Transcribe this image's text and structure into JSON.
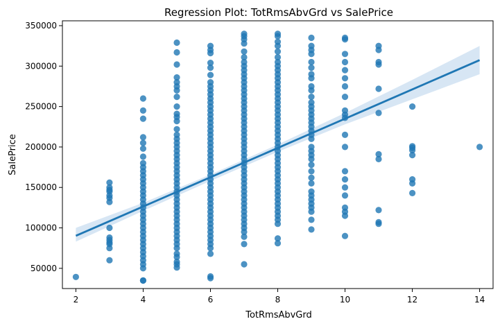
{
  "chart_data": {
    "type": "scatter",
    "title": "Regression Plot: TotRmsAbvGrd vs SalePrice",
    "xlabel": "TotRmsAbvGrd",
    "ylabel": "SalePrice",
    "xlim": [
      1.6,
      14.4
    ],
    "ylim": [
      25000,
      356000
    ],
    "xticks": [
      2,
      4,
      6,
      8,
      10,
      12,
      14
    ],
    "yticks": [
      50000,
      100000,
      150000,
      200000,
      250000,
      300000,
      350000
    ],
    "grid": false,
    "colors": {
      "points": "#1f77b4",
      "line": "#1f77b4",
      "band": "#c6dbef"
    },
    "regression": {
      "intercept": 54000,
      "slope": 18100,
      "x_range": [
        2,
        14
      ]
    },
    "confidence_band": {
      "x": [
        2,
        4,
        6,
        8,
        10,
        12,
        14
      ],
      "lower": [
        83000,
        121000,
        158000,
        194000,
        228000,
        259000,
        290000
      ],
      "upper": [
        100000,
        131000,
        166000,
        203000,
        242000,
        283000,
        325000
      ]
    },
    "series": [
      {
        "x": 2,
        "values": [
          39300
        ]
      },
      {
        "x": 3,
        "values": [
          156000,
          150000,
          147000,
          145000,
          140000,
          137000,
          132000,
          100000,
          88000,
          85000,
          82000,
          80000,
          75000,
          60000
        ]
      },
      {
        "x": 4,
        "values": [
          260000,
          245000,
          235000,
          212000,
          205000,
          198000,
          188000,
          180000,
          175000,
          170000,
          165000,
          160000,
          155000,
          150000,
          145000,
          140000,
          135000,
          130000,
          125000,
          120000,
          115000,
          110000,
          105000,
          100000,
          95000,
          90000,
          85000,
          80000,
          75000,
          70000,
          65000,
          60000,
          55000,
          50000,
          35000,
          34900
        ]
      },
      {
        "x": 5,
        "values": [
          329000,
          317000,
          302000,
          286000,
          280000,
          275000,
          270000,
          262000,
          250000,
          241000,
          237000,
          232000,
          222000,
          215000,
          210000,
          205000,
          200000,
          195000,
          190000,
          185000,
          180000,
          175000,
          170000,
          165000,
          160000,
          155000,
          150000,
          145000,
          140000,
          135000,
          130000,
          125000,
          120000,
          115000,
          110000,
          105000,
          100000,
          95000,
          90000,
          85000,
          80000,
          75000,
          68000,
          64000,
          58000,
          55000,
          51000
        ]
      },
      {
        "x": 6,
        "values": [
          325000,
          320000,
          316000,
          304000,
          298000,
          289000,
          280000,
          275000,
          270000,
          265000,
          260000,
          255000,
          250000,
          245000,
          240000,
          235000,
          230000,
          225000,
          220000,
          215000,
          210000,
          205000,
          200000,
          195000,
          190000,
          185000,
          180000,
          175000,
          170000,
          165000,
          160000,
          155000,
          150000,
          145000,
          140000,
          135000,
          130000,
          125000,
          120000,
          115000,
          110000,
          105000,
          100000,
          95000,
          90000,
          85000,
          80000,
          75000,
          68000,
          40000,
          37900
        ]
      },
      {
        "x": 7,
        "values": [
          340000,
          337000,
          333000,
          328000,
          318000,
          311000,
          305000,
          300000,
          295000,
          290000,
          285000,
          280000,
          275000,
          270000,
          265000,
          260000,
          255000,
          250000,
          245000,
          240000,
          235000,
          230000,
          225000,
          220000,
          215000,
          210000,
          205000,
          200000,
          195000,
          190000,
          185000,
          180000,
          175000,
          170000,
          165000,
          160000,
          155000,
          150000,
          145000,
          140000,
          135000,
          130000,
          125000,
          120000,
          115000,
          110000,
          105000,
          100000,
          95000,
          89000,
          80000,
          55000
        ]
      },
      {
        "x": 8,
        "values": [
          340000,
          337000,
          330000,
          325000,
          318000,
          311000,
          305000,
          300000,
          295000,
          290000,
          285000,
          280000,
          275000,
          270000,
          265000,
          260000,
          255000,
          250000,
          245000,
          240000,
          235000,
          230000,
          225000,
          220000,
          215000,
          210000,
          205000,
          200000,
          195000,
          190000,
          185000,
          180000,
          175000,
          170000,
          165000,
          160000,
          155000,
          150000,
          145000,
          140000,
          135000,
          130000,
          125000,
          120000,
          115000,
          110000,
          105000,
          87000,
          81000
        ]
      },
      {
        "x": 9,
        "values": [
          335000,
          325000,
          320000,
          315000,
          305000,
          298000,
          290000,
          285000,
          275000,
          270000,
          262000,
          255000,
          250000,
          245000,
          240000,
          235000,
          230000,
          225000,
          220000,
          215000,
          210000,
          200000,
          195000,
          190000,
          185000,
          178000,
          170000,
          162000,
          155000,
          145000,
          140000,
          135000,
          130000,
          125000,
          120000,
          110000,
          98000
        ]
      },
      {
        "x": 10,
        "values": [
          335000,
          333000,
          315000,
          305000,
          295000,
          285000,
          275000,
          262000,
          245000,
          240000,
          236000,
          215000,
          200000,
          170000,
          160000,
          150000,
          140000,
          125000,
          120000,
          115000,
          90000
        ]
      },
      {
        "x": 11,
        "values": [
          325000,
          320000,
          305000,
          302000,
          272000,
          242000,
          191000,
          185000,
          122000,
          107000,
          105000
        ]
      },
      {
        "x": 12,
        "values": [
          250000,
          201000,
          199000,
          196000,
          190000,
          160000,
          155000,
          143000
        ]
      },
      {
        "x": 14,
        "values": [
          200000
        ]
      }
    ]
  }
}
